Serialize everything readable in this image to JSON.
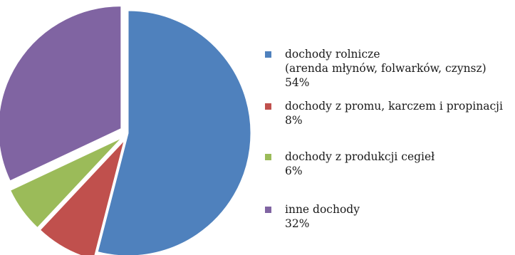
{
  "chart_data": {
    "type": "pie",
    "title": "",
    "legend_position": "right",
    "slices": [
      {
        "label_lines": [
          "dochody rolnicze",
          "(arenda młynów, folwarków, czynsz)"
        ],
        "value": 54,
        "value_label": "54%",
        "color": "#4f81bd",
        "exploded": false
      },
      {
        "label_lines": [
          "dochody z promu, karczem i propinacji"
        ],
        "value": 8,
        "value_label": "8%",
        "color": "#c0504d",
        "exploded": true
      },
      {
        "label_lines": [
          "dochody z produkcji cegieł"
        ],
        "value": 6,
        "value_label": "6%",
        "color": "#9bbb59",
        "exploded": true
      },
      {
        "label_lines": [
          "inne dochody"
        ],
        "value": 32,
        "value_label": "32%",
        "color": "#8064a2",
        "exploded": true
      }
    ]
  }
}
